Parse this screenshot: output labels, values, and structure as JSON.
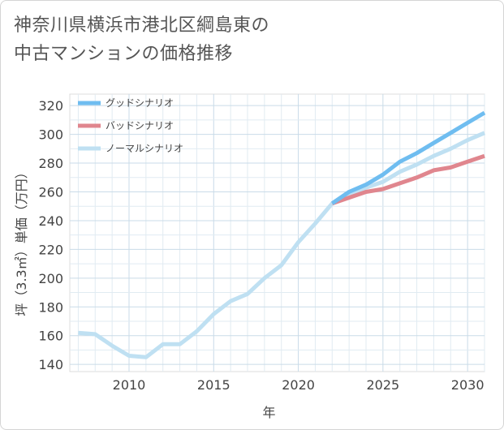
{
  "title_lines": [
    "神奈川県横浜市港北区綱島東の",
    "中古マンションの価格推移"
  ],
  "chart_data": {
    "type": "line",
    "title": "神奈川県横浜市港北区綱島東の中古マンションの価格推移",
    "xlabel": "年",
    "ylabel": "坪（3.3㎡）単価（万円）",
    "xlim": [
      2006.5,
      2031
    ],
    "ylim": [
      135,
      328
    ],
    "xticks": [
      2010,
      2015,
      2020,
      2025,
      2030
    ],
    "yticks": [
      140,
      160,
      180,
      200,
      220,
      240,
      260,
      280,
      300,
      320
    ],
    "grid": true,
    "legend_position": "top-left",
    "series": [
      {
        "name": "グッドシナリオ",
        "color": "#6fbdf0",
        "x": [
          2022,
          2023,
          2024,
          2025,
          2026,
          2027,
          2028,
          2029,
          2030,
          2031
        ],
        "values": [
          252,
          260,
          265,
          272,
          281,
          287,
          294,
          301,
          308,
          315
        ]
      },
      {
        "name": "バッドシナリオ",
        "color": "#e0868e",
        "x": [
          2022,
          2023,
          2024,
          2025,
          2026,
          2027,
          2028,
          2029,
          2030,
          2031
        ],
        "values": [
          252,
          256,
          260,
          262,
          266,
          270,
          275,
          277,
          281,
          285
        ]
      },
      {
        "name": "ノーマルシナリオ",
        "color": "#bfe0f2",
        "x": [
          2007,
          2008,
          2009,
          2010,
          2011,
          2012,
          2013,
          2014,
          2015,
          2016,
          2017,
          2018,
          2019,
          2020,
          2021,
          2022,
          2023,
          2024,
          2025,
          2026,
          2027,
          2028,
          2029,
          2030,
          2031
        ],
        "values": [
          162,
          161,
          153,
          146,
          145,
          154,
          154,
          163,
          175,
          184,
          189,
          200,
          209,
          225,
          238,
          252,
          257,
          263,
          267,
          274,
          279,
          285,
          290,
          296,
          301
        ]
      }
    ]
  }
}
